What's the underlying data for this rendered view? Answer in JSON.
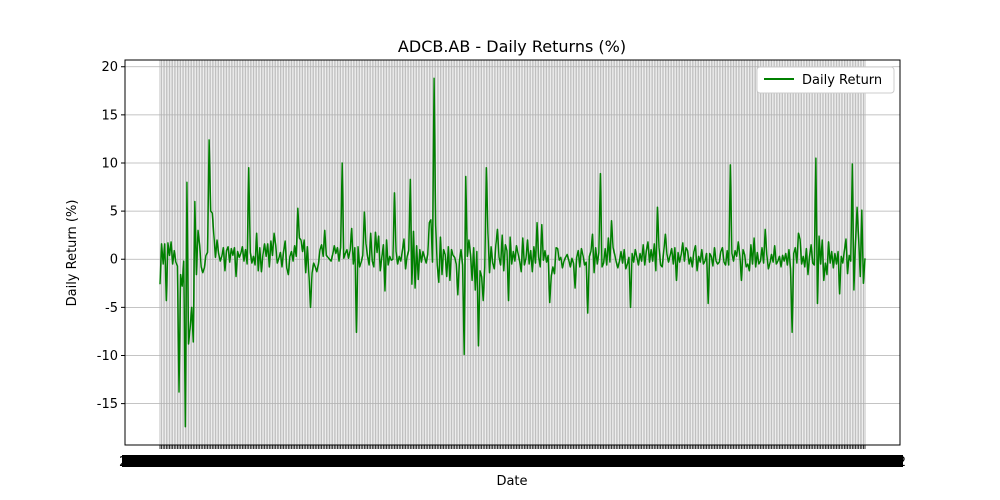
{
  "chart_data": {
    "type": "line",
    "title": "ADCB.AB - Daily Returns (%)",
    "xlabel": "Date",
    "ylabel": "Daily Return (%)",
    "ylim": [
      -19.3,
      20.7
    ],
    "yticks": [
      -15,
      -10,
      -5,
      0,
      5,
      10,
      15,
      20
    ],
    "grid": true,
    "legend_position": "top-right",
    "colors": {
      "series": "#008000",
      "grid": "#b0b0b0"
    },
    "x_tick_labels_visible": [
      "20",
      "2"
    ],
    "series": [
      {
        "name": "Daily Return",
        "values": [
          -2.6,
          1.6,
          -0.5,
          1.6,
          -4.3,
          1.7,
          0.4,
          1.8,
          -0.5,
          0.9,
          -0.3,
          -0.7,
          -13.8,
          -1.6,
          -2.8,
          -0.2,
          -17.4,
          8.0,
          -8.8,
          -7.2,
          -5.0,
          -8.6,
          6.0,
          -1.6,
          3.0,
          1.5,
          -0.8,
          -1.4,
          -0.9,
          0.4,
          0.7,
          12.4,
          5.0,
          4.8,
          2.5,
          0.2,
          2.0,
          0.6,
          -0.2,
          0.3,
          1.2,
          -1.2,
          0.9,
          1.3,
          -0.3,
          1.1,
          0.4,
          1.2,
          -1.8,
          0.8,
          0.2,
          0.6,
          1.3,
          -0.2,
          1.0,
          -0.5,
          9.5,
          0.7,
          -0.4,
          0.3,
          -0.6,
          2.7,
          -1.2,
          1.2,
          -1.3,
          0.5,
          1.6,
          0.3,
          1.6,
          -0.8,
          1.9,
          0.4,
          2.7,
          1.5,
          -0.4,
          0.1,
          0.7,
          -0.8,
          0.8,
          1.9,
          -0.9,
          -1.6,
          0.3,
          0.8,
          -0.2,
          1.4,
          0.3,
          5.3,
          2.2,
          2.0,
          0.8,
          2.0,
          -1.4,
          1.3,
          -1.6,
          -5.0,
          -1.4,
          -0.4,
          -0.8,
          -1.3,
          -0.5,
          1.0,
          1.5,
          0.3,
          3.0,
          0.4,
          0.2,
          0.0,
          -0.2,
          0.5,
          1.4,
          0.6,
          1.2,
          -0.2,
          1.2,
          10.0,
          0.1,
          0.6,
          1.0,
          0.1,
          0.9,
          3.2,
          -0.5,
          1.2,
          -7.6,
          1.3,
          -0.8,
          -0.3,
          0.4,
          4.9,
          1.6,
          0.3,
          -0.6,
          2.7,
          -0.2,
          -0.8,
          2.8,
          0.7,
          2.4,
          -1.2,
          0.2,
          1.5,
          -3.3,
          2.0,
          -0.6,
          0.3,
          -0.1,
          0.0,
          6.9,
          0.8,
          -0.5,
          0.3,
          -0.2,
          0.9,
          2.1,
          -1.0,
          0.3,
          0.9,
          8.3,
          -2.6,
          2.9,
          -3.0,
          1.4,
          -2.1,
          1.0,
          -0.3,
          0.8,
          0.2,
          -0.4,
          0.5,
          3.8,
          4.1,
          -0.3,
          18.8,
          3.5,
          -0.6,
          -2.4,
          2.3,
          -1.6,
          1.0,
          0.5,
          -1.8,
          1.3,
          -2.2,
          1.0,
          0.4,
          0.2,
          -0.5,
          -3.7,
          -0.2,
          1.0,
          -0.6,
          -9.9,
          8.6,
          0.3,
          2.0,
          0.5,
          -2.2,
          1.2,
          -3.2,
          0.8,
          -9.0,
          -1.2,
          -1.8,
          -4.3,
          -0.8,
          9.5,
          2.7,
          -1.4,
          1.3,
          -0.4,
          -1.0,
          1.5,
          3.1,
          0.2,
          -0.6,
          2.5,
          -1.2,
          1.5,
          0.9,
          -4.3,
          2.3,
          -0.5,
          0.8,
          -0.2,
          1.4,
          0.6,
          -0.2,
          -1.3,
          2.2,
          -0.6,
          0.1,
          2.0,
          -0.5,
          0.9,
          -1.3,
          1.3,
          -0.4,
          3.8,
          0.2,
          -0.8,
          3.6,
          -0.1,
          0.9,
          -0.3,
          0.4,
          -4.5,
          -1.7,
          -0.8,
          -1.5,
          1.2,
          1.1,
          -0.1,
          0.2,
          -0.9,
          -0.2,
          0.2,
          0.5,
          -0.1,
          -0.8,
          0.1,
          -0.4,
          -3.0,
          0.2,
          0.9,
          -0.8,
          1.1,
          0.4,
          -0.6,
          -0.3,
          -5.6,
          0.3,
          0.8,
          2.6,
          -1.4,
          1.2,
          -0.5,
          0.7,
          8.9,
          -0.8,
          -0.4,
          1.1,
          -0.6,
          2.2,
          -0.3,
          4.0,
          1.2,
          0.5,
          -0.3,
          -0.9,
          -0.2,
          0.8,
          -0.4,
          1.0,
          -1.0,
          -0.5,
          0.2,
          -5.0,
          0.6,
          -0.3,
          1.0,
          0.2,
          -0.6,
          0.6,
          -0.2,
          1.5,
          -0.6,
          0.9,
          1.8,
          -0.3,
          1.0,
          -0.2,
          1.6,
          -1.2,
          5.4,
          1.2,
          -0.6,
          -0.8,
          0.9,
          2.6,
          0.5,
          -0.3,
          0.4,
          1.1,
          -0.5,
          1.2,
          -2.2,
          0.7,
          -0.3,
          0.5,
          1.7,
          -0.2,
          1.2,
          0.9,
          -0.5,
          0.2,
          -0.8,
          0.8,
          1.4,
          -1.2,
          0.3,
          -0.3,
          1.0,
          -0.5,
          -0.2,
          0.6,
          -4.6,
          0.6,
          0.3,
          -0.7,
          1.2,
          -0.2,
          -0.5,
          -0.3,
          0.8,
          1.2,
          -0.3,
          -0.6,
          0.9,
          -0.6,
          9.8,
          0.6,
          -0.2,
          0.9,
          0.3,
          1.8,
          0.4,
          -2.2,
          1.0,
          0.5,
          -0.8,
          -0.5,
          -1.2,
          1.5,
          -0.5,
          2.2,
          -0.8,
          0.7,
          -0.5,
          -0.2,
          1.2,
          -0.4,
          3.1,
          0.5,
          -1.0,
          -0.4,
          0.5,
          -0.3,
          1.4,
          -0.5,
          -0.2,
          0.3,
          -0.8,
          0.4,
          -0.2,
          0.6,
          -0.6,
          1.0,
          -1.0,
          -7.6,
          0.6,
          1.2,
          -0.4,
          2.7,
          2.1,
          -0.5,
          0.3,
          -0.8,
          1.1,
          -1.6,
          0.3,
          1.5,
          -0.4,
          -0.6,
          10.5,
          -4.6,
          2.4,
          -0.5,
          2.0,
          -2.2,
          -0.4,
          -1.6,
          1.8,
          -0.4,
          0.8,
          -0.9,
          0.6,
          -0.5,
          0.8,
          -3.6,
          0.3,
          -0.4,
          0.9,
          2.1,
          -1.5,
          0.4,
          -0.2,
          9.9,
          -3.2,
          1.7,
          5.4,
          2.1,
          -1.8,
          5.1,
          -2.5,
          0.1
        ]
      }
    ]
  }
}
